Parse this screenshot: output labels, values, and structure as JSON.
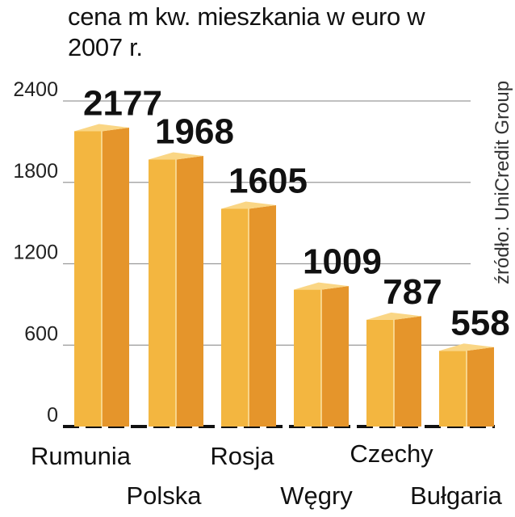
{
  "chart_data": {
    "type": "bar",
    "title": "cena m kw. mieszkania w euro w 2007 r.",
    "source": "źródło: UniCredit Group",
    "categories": [
      "Rumunia",
      "Polska",
      "Rosja",
      "Węgry",
      "Czechy",
      "Bułgaria"
    ],
    "values": [
      2177,
      1968,
      1605,
      1009,
      787,
      558
    ],
    "data_labels": [
      "2177",
      "1968",
      "1605",
      "1009",
      "787",
      "558"
    ],
    "yticks": [
      0,
      600,
      1200,
      1800,
      2400
    ],
    "ytick_labels": [
      "0",
      "600",
      "1200",
      "1800",
      "2400"
    ],
    "ylim": [
      0,
      2400
    ],
    "grid": true,
    "colors": {
      "bar_front": "#f3b640",
      "bar_side": "#e5952b",
      "bar_top": "#fad685",
      "edge": "#fbe3a6",
      "grid": "#9a9a9a",
      "baseline": "#111111"
    }
  }
}
